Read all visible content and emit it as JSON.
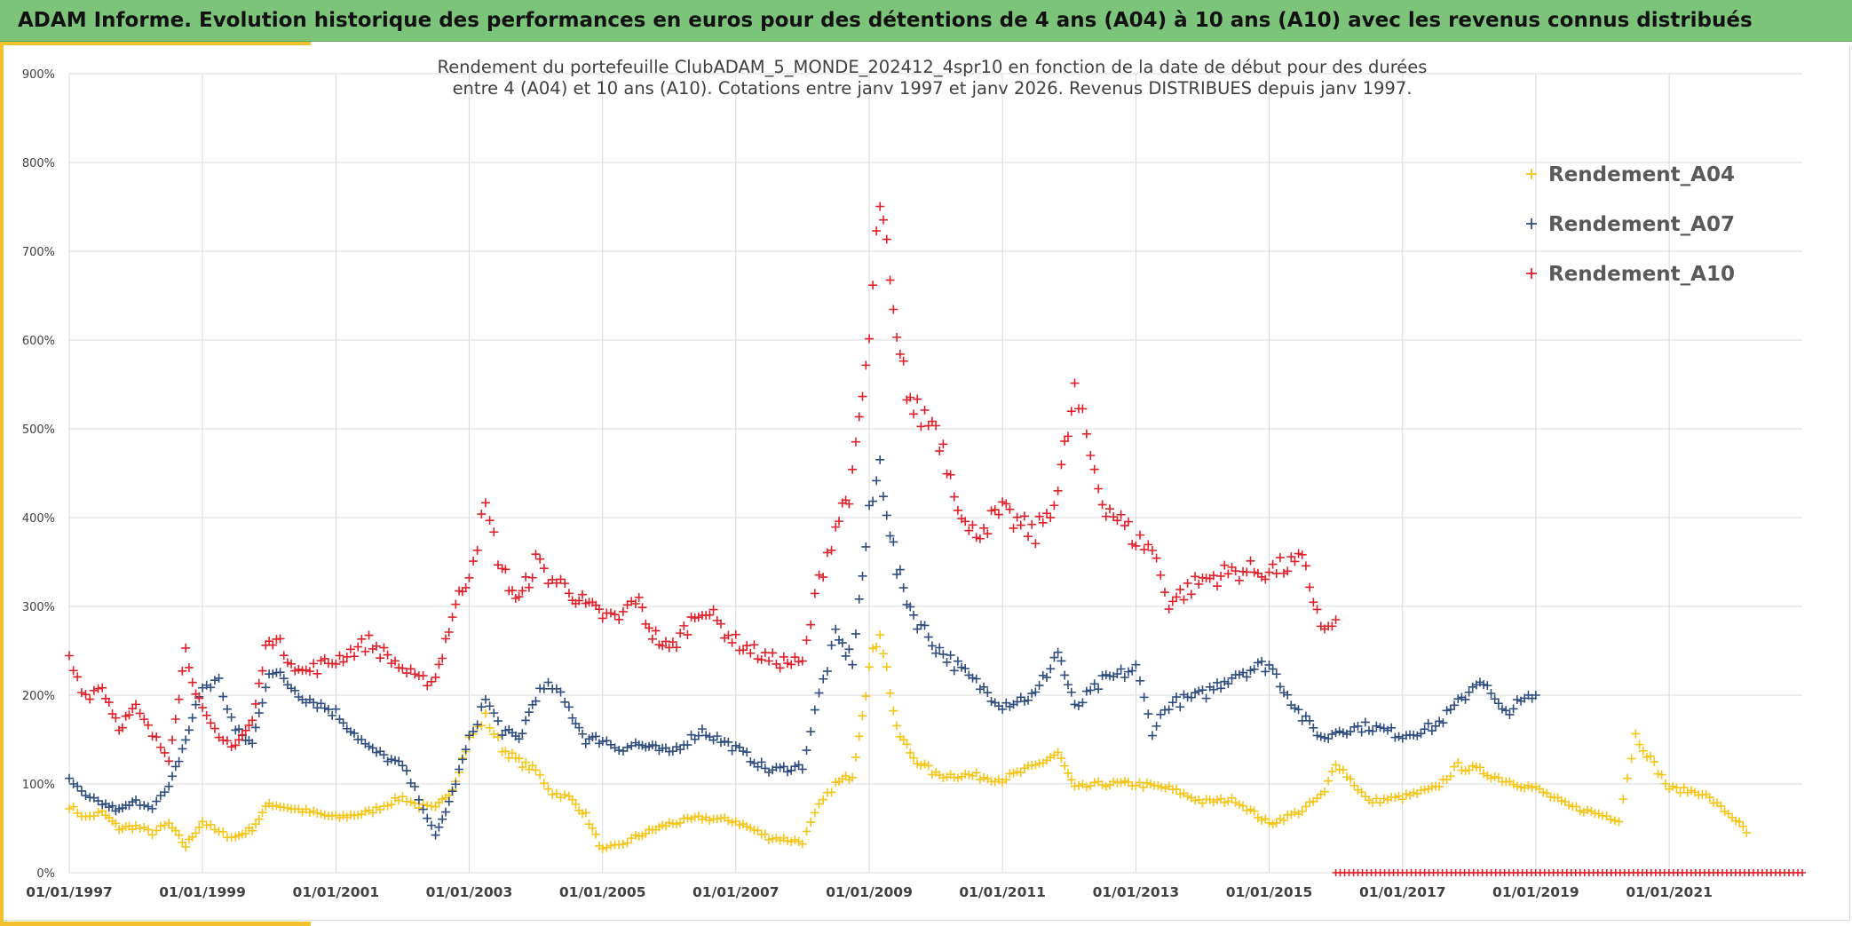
{
  "banner": {
    "title": "ADAM Informe. Evolution historique des performances en euros pour des détentions de 4 ans (A04) à 10 ans (A10) avec les revenus connus distribués"
  },
  "colors": {
    "banner": "#7cc47a",
    "accent": "#f2c12e",
    "a04": "#f5c518",
    "a07": "#2f4d7e",
    "a10": "#e0202a",
    "grid": "#d9d9d9"
  },
  "chart_data": {
    "type": "scatter",
    "marker": "plus",
    "title": [
      "Rendement du portefeuille ClubADAM_5_MONDE_202412_4spr10  en fonction de la date de début pour des durées",
      "entre 4 (A04) et 10 ans (A10). Cotations entre janv 1997 et janv 2026. Revenus DISTRIBUES depuis janv 1997."
    ],
    "xlabel": "",
    "ylabel": "",
    "x_range": [
      "1997-01-01",
      "2022-12-31"
    ],
    "x_ticks": [
      "01/01/1997",
      "01/01/1999",
      "01/01/2001",
      "01/01/2003",
      "01/01/2005",
      "01/01/2007",
      "01/01/2009",
      "01/01/2011",
      "01/01/2013",
      "01/01/2015",
      "01/01/2017",
      "01/01/2019",
      "01/01/2021"
    ],
    "y_range": [
      0,
      900
    ],
    "y_unit": "%",
    "y_ticks": [
      "0%",
      "100%",
      "200%",
      "300%",
      "400%",
      "500%",
      "600%",
      "700%",
      "800%",
      "900%"
    ],
    "grid": true,
    "legend_position": "top-right",
    "series": [
      {
        "name": "Rendement_A04",
        "color": "#f5c518",
        "x": [
          "1997-01-01",
          "1997-04-01",
          "1997-07-01",
          "1997-10-01",
          "1998-01-01",
          "1998-04-01",
          "1998-07-01",
          "1998-10-01",
          "1999-01-01",
          "1999-04-01",
          "1999-07-01",
          "1999-10-01",
          "2000-01-01",
          "2000-07-01",
          "2001-01-01",
          "2001-07-01",
          "2002-01-01",
          "2002-04-01",
          "2002-07-01",
          "2002-10-01",
          "2003-01-01",
          "2003-04-01",
          "2003-07-01",
          "2003-10-01",
          "2004-01-01",
          "2004-04-01",
          "2004-07-01",
          "2004-10-01",
          "2005-01-01",
          "2005-04-01",
          "2005-07-01",
          "2005-10-01",
          "2006-01-01",
          "2006-07-01",
          "2007-01-01",
          "2007-07-01",
          "2008-01-01",
          "2008-04-01",
          "2008-07-01",
          "2008-10-01",
          "2009-01-01",
          "2009-03-01",
          "2009-06-01",
          "2009-09-01",
          "2010-01-01",
          "2010-07-01",
          "2011-01-01",
          "2011-07-01",
          "2011-11-01",
          "2012-02-01",
          "2012-07-01",
          "2013-01-01",
          "2013-07-01",
          "2014-01-01",
          "2014-07-01",
          "2015-01-01",
          "2015-07-01",
          "2015-11-01",
          "2016-01-01",
          "2016-07-01",
          "2017-01-01",
          "2017-07-01",
          "2017-11-01",
          "2018-03-01",
          "2018-07-01",
          "2019-01-01",
          "2019-07-01",
          "2020-01-01",
          "2020-04-01",
          "2020-07-01",
          "2021-01-01",
          "2021-07-01",
          "2022-01-01",
          "2022-03-01"
        ],
        "y": [
          75,
          62,
          68,
          50,
          52,
          45,
          55,
          30,
          58,
          45,
          40,
          50,
          78,
          70,
          62,
          68,
          85,
          75,
          72,
          95,
          150,
          175,
          140,
          125,
          115,
          90,
          85,
          65,
          25,
          30,
          40,
          48,
          55,
          62,
          58,
          40,
          35,
          75,
          100,
          110,
          230,
          275,
          160,
          130,
          110,
          110,
          105,
          120,
          135,
          95,
          100,
          100,
          95,
          80,
          82,
          55,
          70,
          90,
          125,
          80,
          85,
          95,
          120,
          115,
          105,
          95,
          75,
          65,
          60,
          155,
          95,
          90,
          60,
          45
        ]
      },
      {
        "name": "Rendement_A07",
        "color": "#2f4d7e",
        "x": [
          "1997-01-01",
          "1997-04-01",
          "1997-07-01",
          "1997-10-01",
          "1998-01-01",
          "1998-04-01",
          "1998-07-01",
          "1998-10-01",
          "1999-01-01",
          "1999-04-01",
          "1999-07-01",
          "1999-10-01",
          "2000-01-01",
          "2000-07-01",
          "2001-01-01",
          "2001-07-01",
          "2002-01-01",
          "2002-04-01",
          "2002-07-01",
          "2002-10-01",
          "2003-01-01",
          "2003-04-01",
          "2003-07-01",
          "2003-10-01",
          "2004-01-01",
          "2004-04-01",
          "2004-07-01",
          "2004-10-01",
          "2005-01-01",
          "2005-04-01",
          "2005-07-01",
          "2005-10-01",
          "2006-01-01",
          "2006-07-01",
          "2007-01-01",
          "2007-07-01",
          "2008-01-01",
          "2008-04-01",
          "2008-07-01",
          "2008-10-01",
          "2009-01-01",
          "2009-03-01",
          "2009-06-01",
          "2009-09-01",
          "2010-01-01",
          "2010-07-01",
          "2011-01-01",
          "2011-07-01",
          "2011-11-01",
          "2012-02-01",
          "2012-07-01",
          "2013-01-01",
          "2013-04-01",
          "2013-07-01",
          "2014-01-01",
          "2014-07-01",
          "2015-01-01",
          "2015-07-01",
          "2015-11-01",
          "2016-01-01",
          "2016-07-01",
          "2017-01-01",
          "2017-07-01",
          "2017-11-01",
          "2018-03-01",
          "2018-07-01",
          "2019-01-01"
        ],
        "y": [
          105,
          85,
          78,
          70,
          80,
          75,
          95,
          150,
          210,
          215,
          160,
          145,
          230,
          200,
          180,
          140,
          120,
          85,
          40,
          90,
          150,
          195,
          160,
          150,
          200,
          210,
          185,
          150,
          150,
          140,
          145,
          140,
          135,
          160,
          140,
          115,
          120,
          200,
          265,
          240,
          400,
          460,
          340,
          290,
          255,
          220,
          190,
          200,
          250,
          185,
          215,
          230,
          160,
          190,
          200,
          225,
          235,
          175,
          150,
          160,
          165,
          155,
          165,
          190,
          220,
          180,
          200
        ]
      },
      {
        "name": "Rendement_A10",
        "color": "#e0202a",
        "x": [
          "1997-01-01",
          "1997-04-01",
          "1997-07-01",
          "1997-10-01",
          "1998-01-01",
          "1998-04-01",
          "1998-07-01",
          "1998-10-01",
          "1999-01-01",
          "1999-04-01",
          "1999-07-01",
          "1999-10-01",
          "2000-01-01",
          "2000-07-01",
          "2001-01-01",
          "2001-07-01",
          "2002-01-01",
          "2002-04-01",
          "2002-07-01",
          "2002-10-01",
          "2003-01-01",
          "2003-04-01",
          "2003-07-01",
          "2003-10-01",
          "2004-01-01",
          "2004-04-01",
          "2004-07-01",
          "2004-10-01",
          "2005-01-01",
          "2005-04-01",
          "2005-07-01",
          "2005-10-01",
          "2006-01-01",
          "2006-07-01",
          "2007-01-01",
          "2007-07-01",
          "2008-01-01",
          "2008-04-01",
          "2008-07-01",
          "2008-10-01",
          "2009-01-01",
          "2009-03-01",
          "2009-06-01",
          "2009-09-01",
          "2010-01-01",
          "2010-07-01",
          "2011-01-01",
          "2011-07-01",
          "2011-11-01",
          "2012-02-01",
          "2012-07-01",
          "2013-01-01",
          "2013-04-01",
          "2013-07-01",
          "2014-01-01",
          "2014-07-01",
          "2015-01-01",
          "2015-07-01",
          "2015-11-01",
          "2016-01-01"
        ],
        "y": [
          240,
          200,
          210,
          165,
          185,
          155,
          130,
          250,
          180,
          150,
          145,
          170,
          270,
          225,
          240,
          260,
          230,
          215,
          220,
          290,
          340,
          410,
          340,
          305,
          350,
          330,
          320,
          300,
          290,
          285,
          310,
          270,
          250,
          300,
          260,
          240,
          235,
          330,
          390,
          440,
          600,
          760,
          590,
          520,
          505,
          380,
          405,
          380,
          430,
          540,
          420,
          375,
          365,
          305,
          330,
          340,
          340,
          350,
          270,
          285
        ]
      },
      {
        "name": "",
        "color": "#e0202a",
        "x": [
          "2016-01-01",
          "2022-12-31"
        ],
        "y": [
          0,
          0
        ]
      }
    ]
  }
}
